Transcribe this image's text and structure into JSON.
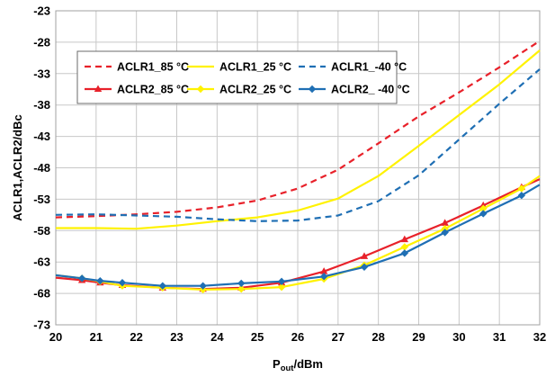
{
  "chart_data": {
    "type": "line",
    "title": "",
    "xlabel_main": "P",
    "xlabel_sub": "out",
    "xlabel_unit": "/dBm",
    "ylabel": "ACLR1,ACLR2/dBc",
    "xlim": [
      20,
      32
    ],
    "ylim": [
      -73,
      -23
    ],
    "xticks": [
      "20",
      "21",
      "22",
      "23",
      "24",
      "25",
      "26",
      "27",
      "28",
      "29",
      "30",
      "31",
      "32"
    ],
    "yticks": [
      "-23",
      "-28",
      "-33",
      "-38",
      "-43",
      "-48",
      "-53",
      "-58",
      "-63",
      "-68",
      "-73"
    ],
    "grid": true,
    "legend_position": "top-left",
    "series": [
      {
        "name": "ACLR1_85 °C",
        "color": "#e8212a",
        "dash": "dashed",
        "marker": "none",
        "x": [
          20,
          21,
          22,
          23,
          24,
          25,
          26,
          27,
          28,
          29,
          30,
          31,
          32
        ],
        "y": [
          -55.9,
          -55.7,
          -55.4,
          -55.0,
          -54.3,
          -53.2,
          -51.3,
          -48.3,
          -44.1,
          -39.8,
          -36.0,
          -32.0,
          -27.8
        ]
      },
      {
        "name": "ACLR1_25 °C",
        "color": "#fff200",
        "dash": "solid",
        "marker": "none",
        "x": [
          20,
          21,
          22,
          23,
          24,
          25,
          26,
          27,
          28,
          29,
          30,
          31,
          32
        ],
        "y": [
          -57.6,
          -57.6,
          -57.7,
          -57.2,
          -56.5,
          -55.9,
          -54.8,
          -52.9,
          -49.3,
          -44.5,
          -39.6,
          -34.7,
          -29.3
        ]
      },
      {
        "name": "ACLR1_-40 °C",
        "color": "#1f6fb4",
        "dash": "dashed",
        "marker": "none",
        "x": [
          20,
          21,
          22,
          23,
          24,
          25,
          26,
          27,
          28,
          29,
          30,
          31,
          32
        ],
        "y": [
          -55.5,
          -55.4,
          -55.6,
          -55.8,
          -56.2,
          -56.5,
          -56.4,
          -55.6,
          -53.3,
          -49.2,
          -43.5,
          -37.8,
          -32.3
        ]
      },
      {
        "name": "ACLR2_85 °C",
        "color": "#e8212a",
        "dash": "solid",
        "marker": "triangle",
        "x": [
          20,
          20.65,
          21.1,
          21.65,
          22.65,
          23.65,
          24.6,
          25.6,
          26.65,
          27.65,
          28.65,
          29.65,
          30.6,
          31.55,
          32
        ],
        "y": [
          -65.5,
          -65.9,
          -66.3,
          -66.7,
          -67.1,
          -67.3,
          -67.1,
          -66.3,
          -64.5,
          -62.1,
          -59.4,
          -56.8,
          -54.0,
          -51.1,
          -49.8
        ]
      },
      {
        "name": "ACLR2_25 °C",
        "color": "#fff200",
        "dash": "solid",
        "marker": "diamond",
        "x": [
          20,
          20.65,
          21.1,
          21.65,
          22.65,
          23.65,
          24.6,
          25.6,
          26.65,
          27.65,
          28.65,
          29.65,
          30.6,
          31.55,
          32
        ],
        "y": [
          -65.1,
          -65.6,
          -66.1,
          -66.8,
          -67.1,
          -67.4,
          -67.3,
          -67.0,
          -65.7,
          -63.5,
          -60.6,
          -57.7,
          -54.5,
          -51.3,
          -49.3
        ]
      },
      {
        "name": "ACLR2_ -40 °C",
        "color": "#1f6fb4",
        "dash": "solid",
        "marker": "diamond",
        "x": [
          20,
          20.65,
          21.1,
          21.65,
          22.65,
          23.65,
          24.6,
          25.6,
          26.65,
          27.65,
          28.65,
          29.65,
          30.6,
          31.55,
          32
        ],
        "y": [
          -65.1,
          -65.6,
          -66.0,
          -66.3,
          -66.8,
          -66.8,
          -66.4,
          -66.1,
          -65.3,
          -63.8,
          -61.6,
          -58.3,
          -55.3,
          -52.4,
          -50.7
        ]
      }
    ]
  }
}
